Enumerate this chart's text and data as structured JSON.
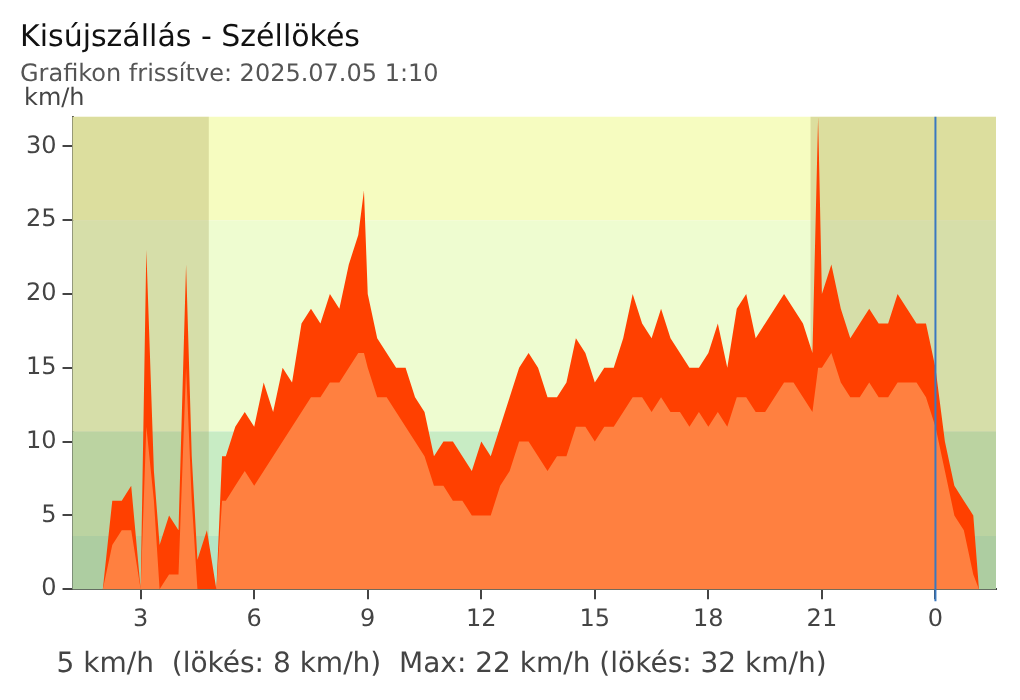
{
  "chart_data": {
    "type": "area",
    "title": "Kisújszállás - Széllökés",
    "subtitle": "Grafikon frissítve: 2025.07.05 1:10",
    "ylabel": "km/h",
    "annotations": [
      "5 km/h  (lökés: 8 km/h)  Max: 22 km/h (lökés: 32 km/h)"
    ],
    "x": [
      "2025-07-04T01:15",
      "2025-07-04T01:30",
      "2025-07-04T01:45",
      "2025-07-04T02:00",
      "2025-07-04T02:15",
      "2025-07-04T02:30",
      "2025-07-04T02:45",
      "2025-07-04T03:00",
      "2025-07-04T03:09",
      "2025-07-04T03:21",
      "2025-07-04T03:30",
      "2025-07-04T03:45",
      "2025-07-04T04:00",
      "2025-07-04T04:12",
      "2025-07-04T04:21",
      "2025-07-04T04:30",
      "2025-07-04T04:45",
      "2025-07-04T05:00",
      "2025-07-04T05:09",
      "2025-07-04T05:15",
      "2025-07-04T05:30",
      "2025-07-04T05:45",
      "2025-07-04T06:00",
      "2025-07-04T06:15",
      "2025-07-04T06:30",
      "2025-07-04T06:45",
      "2025-07-04T07:00",
      "2025-07-04T07:15",
      "2025-07-04T07:30",
      "2025-07-04T07:45",
      "2025-07-04T08:00",
      "2025-07-04T08:15",
      "2025-07-04T08:30",
      "2025-07-04T08:45",
      "2025-07-04T08:54",
      "2025-07-04T09:00",
      "2025-07-04T09:15",
      "2025-07-04T09:30",
      "2025-07-04T09:45",
      "2025-07-04T10:00",
      "2025-07-04T10:15",
      "2025-07-04T10:30",
      "2025-07-04T10:45",
      "2025-07-04T11:00",
      "2025-07-04T11:15",
      "2025-07-04T11:30",
      "2025-07-04T11:45",
      "2025-07-04T12:00",
      "2025-07-04T12:15",
      "2025-07-04T12:30",
      "2025-07-04T12:45",
      "2025-07-04T13:00",
      "2025-07-04T13:15",
      "2025-07-04T13:30",
      "2025-07-04T13:45",
      "2025-07-04T14:00",
      "2025-07-04T14:15",
      "2025-07-04T14:30",
      "2025-07-04T14:45",
      "2025-07-04T15:00",
      "2025-07-04T15:15",
      "2025-07-04T15:30",
      "2025-07-04T15:45",
      "2025-07-04T16:00",
      "2025-07-04T16:15",
      "2025-07-04T16:30",
      "2025-07-04T16:45",
      "2025-07-04T17:00",
      "2025-07-04T17:15",
      "2025-07-04T17:30",
      "2025-07-04T17:45",
      "2025-07-04T18:00",
      "2025-07-04T18:15",
      "2025-07-04T18:30",
      "2025-07-04T18:45",
      "2025-07-04T19:00",
      "2025-07-04T19:15",
      "2025-07-04T19:30",
      "2025-07-04T19:45",
      "2025-07-04T20:00",
      "2025-07-04T20:15",
      "2025-07-04T20:30",
      "2025-07-04T20:45",
      "2025-07-04T20:54",
      "2025-07-04T21:00",
      "2025-07-04T21:15",
      "2025-07-04T21:30",
      "2025-07-04T21:45",
      "2025-07-04T22:00",
      "2025-07-04T22:15",
      "2025-07-04T22:30",
      "2025-07-04T22:45",
      "2025-07-04T23:00",
      "2025-07-04T23:15",
      "2025-07-04T23:30",
      "2025-07-04T23:45",
      "2025-07-05T00:00",
      "2025-07-05T00:15",
      "2025-07-05T00:30",
      "2025-07-05T00:45",
      "2025-07-05T01:00",
      "2025-07-05T01:09"
    ],
    "series": [
      {
        "color": "#ff4000",
        "values": [
          0,
          0,
          0,
          0,
          6,
          6,
          7,
          0,
          23,
          8,
          3,
          5,
          4,
          22,
          9,
          2,
          4,
          0,
          9,
          9,
          11,
          12,
          11,
          14,
          12,
          15,
          14,
          18,
          19,
          18,
          20,
          19,
          22,
          24,
          27,
          20,
          17,
          16,
          15,
          15,
          13,
          12,
          9,
          10,
          10,
          9,
          8,
          10,
          9,
          11,
          13,
          15,
          16,
          15,
          13,
          13,
          14,
          17,
          16,
          14,
          15,
          15,
          17,
          20,
          18,
          17,
          19,
          17,
          16,
          15,
          15,
          16,
          18,
          15,
          19,
          20,
          17,
          18,
          19,
          20,
          19,
          18,
          16,
          32,
          20,
          22,
          19,
          17,
          18,
          19,
          18,
          18,
          20,
          19,
          18,
          18,
          15,
          10,
          7,
          6,
          5,
          0
        ]
      },
      {
        "color": "#ff8040",
        "values": [
          0,
          0,
          0,
          0,
          3,
          4,
          4,
          0,
          11,
          6,
          0,
          1,
          1,
          15,
          6,
          0,
          0,
          0,
          6,
          6,
          7,
          8,
          7,
          8,
          9,
          10,
          11,
          12,
          13,
          13,
          14,
          14,
          15,
          16,
          16,
          15,
          13,
          13,
          12,
          11,
          10,
          9,
          7,
          7,
          6,
          6,
          5,
          5,
          5,
          7,
          8,
          10,
          10,
          9,
          8,
          9,
          9,
          11,
          11,
          10,
          11,
          11,
          12,
          13,
          13,
          12,
          13,
          12,
          12,
          11,
          12,
          11,
          12,
          11,
          13,
          13,
          12,
          12,
          13,
          14,
          14,
          13,
          12,
          15,
          15,
          16,
          14,
          13,
          13,
          14,
          13,
          13,
          14,
          14,
          14,
          13,
          11,
          8,
          5,
          4,
          1,
          0
        ]
      }
    ],
    "xlim": [
      "2025-07-04T01:12",
      "2025-07-05T01:36"
    ],
    "xticks": [
      {
        "value": "2025-07-04T03:00",
        "label": "3"
      },
      {
        "value": "2025-07-04T06:00",
        "label": "6"
      },
      {
        "value": "2025-07-04T09:00",
        "label": "9"
      },
      {
        "value": "2025-07-04T12:00",
        "label": "12"
      },
      {
        "value": "2025-07-04T15:00",
        "label": "15"
      },
      {
        "value": "2025-07-04T18:00",
        "label": "18"
      },
      {
        "value": "2025-07-04T21:00",
        "label": "21"
      },
      {
        "value": "2025-07-05T00:00",
        "label": "0"
      }
    ],
    "ylim": [
      0,
      32
    ],
    "yticks": [
      0,
      5,
      10,
      15,
      20,
      25,
      30
    ],
    "bands": [
      {
        "axis": "y",
        "from": 0,
        "to": 3.6,
        "color": "#b4e4c4"
      },
      {
        "axis": "y",
        "from": 3.6,
        "to": 10.7,
        "color": "#c8ecc4"
      },
      {
        "axis": "y",
        "from": 10.7,
        "to": 25,
        "color": "#eefcd0"
      },
      {
        "axis": "y",
        "from": 25,
        "to": 32,
        "color": "#f6fcc0"
      },
      {
        "axis": "x",
        "from": "2025-07-04T01:12",
        "to": "2025-07-04T04:48",
        "color": "#a09850"
      },
      {
        "axis": "x",
        "from": "2025-07-04T20:42",
        "to": "2025-07-05T01:36",
        "color": "#a09850"
      }
    ],
    "ref_lines": [
      {
        "axis": "x",
        "value": "2025-07-05T00:00",
        "color": "#3a78c0"
      }
    ]
  }
}
